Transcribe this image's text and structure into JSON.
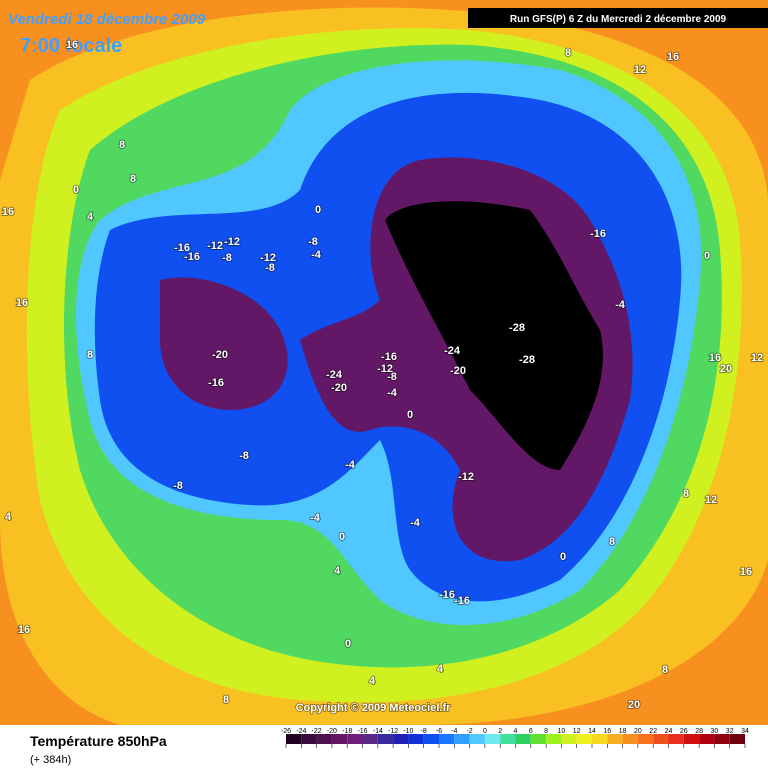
{
  "header": {
    "date": "Vendredi 18 décembre 2009",
    "time": "7:00 locale",
    "run": "Run GFS(P) 6 Z du Mercredi 2 décembre 2009"
  },
  "footer": {
    "field": "Température 850hPa",
    "lead": "(+ 384h)",
    "copyright": "Copyright © 2009 Meteociel.fr"
  },
  "colorbar": {
    "ticks": [
      -26,
      -24,
      -22,
      -20,
      -18,
      -16,
      -14,
      -12,
      -10,
      -8,
      -6,
      -4,
      -2,
      0,
      2,
      4,
      6,
      8,
      10,
      12,
      14,
      16,
      18,
      20,
      22,
      24,
      26,
      28,
      30,
      32,
      34
    ],
    "colors": [
      "#200020",
      "#3a0a3a",
      "#4e1050",
      "#621866",
      "#70207a",
      "#5a2a8a",
      "#3a2aa0",
      "#2020b8",
      "#1030d8",
      "#1050f0",
      "#1878ff",
      "#30a0ff",
      "#50c8ff",
      "#70e8f0",
      "#40e0a0",
      "#30d060",
      "#60e030",
      "#a0f020",
      "#d0f020",
      "#f0f020",
      "#f8d820",
      "#f8b020",
      "#f89020",
      "#f87020",
      "#f05020",
      "#e83020",
      "#d01010",
      "#b00010",
      "#900010",
      "#700010"
    ]
  },
  "contour_labels": [
    8,
    16,
    12,
    16,
    8,
    8,
    0,
    4,
    16,
    16,
    8,
    0,
    -8,
    -4,
    -16,
    -16,
    -12,
    -12,
    -8,
    -12,
    -8,
    -20,
    -16,
    -24,
    -20,
    -16,
    -12,
    -8,
    -4,
    0,
    -24,
    -20,
    -28,
    -28,
    -16,
    -4,
    0,
    16,
    20,
    12,
    -8,
    -8,
    -4,
    -12,
    -4,
    -4,
    0,
    4,
    0,
    8,
    8,
    12,
    16,
    -16,
    -16,
    0,
    4,
    4,
    8,
    16,
    4,
    8,
    20
  ]
}
